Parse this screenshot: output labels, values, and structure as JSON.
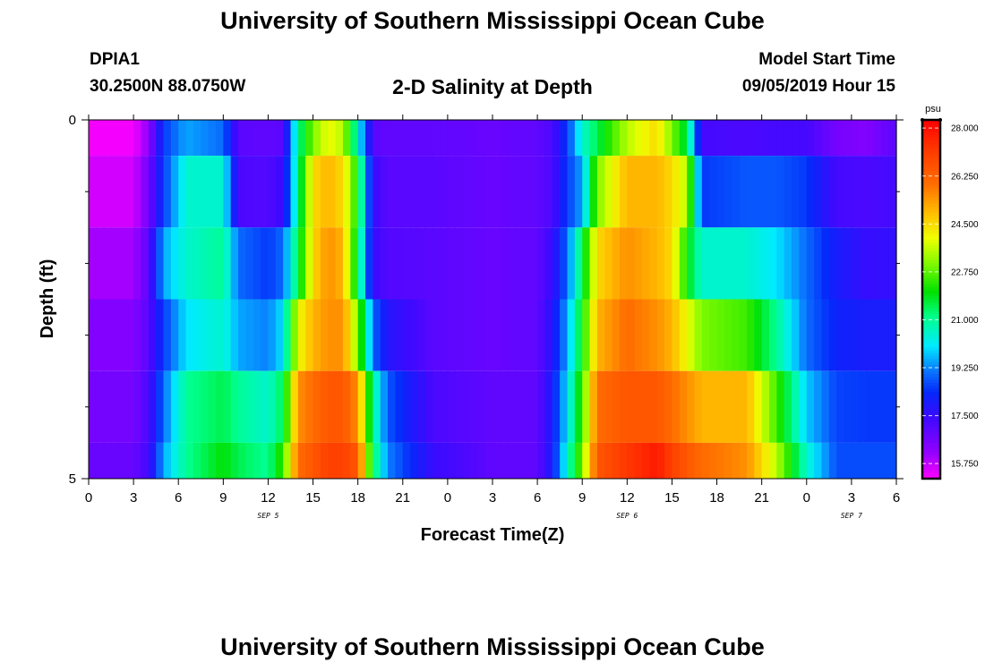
{
  "header": {
    "title": "University of Southern Mississippi Ocean Cube",
    "station_id": "DPIA1",
    "station_location": "30.2500N 88.0750W",
    "chart_title": "2-D Salinity at Depth",
    "model_start_label": "Model Start Time",
    "model_start_value": "09/05/2019 Hour 15"
  },
  "footer": {
    "title": "University of Southern Mississippi Ocean Cube"
  },
  "chart_data": {
    "type": "heatmap",
    "title": "2-D Salinity at Depth",
    "xlabel": "Forecast Time(Z)",
    "ylabel": "Depth (ft)",
    "x_tick_labels": [
      "0",
      "3",
      "6",
      "9",
      "12",
      "15",
      "18",
      "21",
      "0",
      "3",
      "6",
      "9",
      "12",
      "15",
      "18",
      "21",
      "0",
      "3",
      "6"
    ],
    "x_range_hours": [
      0,
      54
    ],
    "y_tick_labels": [
      "0",
      "5"
    ],
    "y_range": [
      0,
      5
    ],
    "day_labels": [
      {
        "label": "SEP 5",
        "hour": 12
      },
      {
        "label": "SEP 6",
        "hour": 36
      },
      {
        "label": "SEP 7",
        "hour": 51
      }
    ],
    "colorbar": {
      "unit": "psu",
      "ticks": [
        "28.000",
        "26.250",
        "24.500",
        "22.750",
        "21.000",
        "19.250",
        "17.500",
        "15.750"
      ],
      "min": 15.2,
      "max": 28.3
    },
    "depth_rows": [
      {
        "y0": 0.0,
        "y1": 0.5
      },
      {
        "y0": 0.5,
        "y1": 1.5
      },
      {
        "y0": 1.5,
        "y1": 2.5
      },
      {
        "y0": 2.5,
        "y1": 3.5
      },
      {
        "y0": 3.5,
        "y1": 4.5
      },
      {
        "y0": 4.5,
        "y1": 5.0
      }
    ],
    "profiles": [
      {
        "hour": 0,
        "values": [
          15.3,
          15.6,
          16.0,
          16.4,
          16.6,
          16.8
        ]
      },
      {
        "hour": 3,
        "values": [
          15.3,
          15.6,
          16.0,
          16.4,
          16.6,
          16.8
        ]
      },
      {
        "hour": 4,
        "values": [
          16.2,
          16.6,
          17.0,
          17.0,
          17.2,
          17.3
        ]
      },
      {
        "hour": 5,
        "values": [
          18.5,
          18.5,
          19.5,
          18.5,
          19.0,
          19.5
        ]
      },
      {
        "hour": 6.5,
        "values": [
          19.5,
          20.5,
          20.5,
          20.0,
          21.0,
          21.0
        ]
      },
      {
        "hour": 9,
        "values": [
          19.0,
          20.5,
          21.0,
          20.5,
          21.5,
          22.0
        ]
      },
      {
        "hour": 10,
        "values": [
          17.0,
          17.2,
          19.0,
          19.5,
          21.0,
          21.5
        ]
      },
      {
        "hour": 12,
        "values": [
          16.9,
          17.1,
          18.5,
          19.2,
          20.5,
          21.0
        ]
      },
      {
        "hour": 13,
        "values": [
          17.0,
          17.5,
          19.0,
          20.0,
          21.5,
          22.5
        ]
      },
      {
        "hour": 14,
        "values": [
          21.0,
          21.0,
          21.5,
          24.0,
          25.5,
          26.0
        ]
      },
      {
        "hour": 15,
        "values": [
          23.0,
          24.5,
          24.5,
          25.0,
          26.0,
          26.5
        ]
      },
      {
        "hour": 16,
        "values": [
          24.0,
          25.0,
          25.5,
          25.5,
          26.5,
          27.0
        ]
      },
      {
        "hour": 17,
        "values": [
          23.5,
          24.5,
          25.0,
          25.5,
          26.5,
          27.0
        ]
      },
      {
        "hour": 18,
        "values": [
          20.5,
          22.0,
          21.5,
          23.0,
          25.5,
          26.5
        ]
      },
      {
        "hour": 19,
        "values": [
          17.0,
          17.5,
          17.5,
          19.0,
          21.0,
          21.5
        ]
      },
      {
        "hour": 20,
        "values": [
          16.9,
          17.0,
          17.1,
          17.8,
          18.8,
          19.2
        ]
      },
      {
        "hour": 23,
        "values": [
          16.9,
          17.0,
          17.0,
          17.0,
          17.2,
          17.5
        ]
      },
      {
        "hour": 27,
        "values": [
          16.8,
          16.8,
          16.8,
          16.8,
          16.9,
          16.9
        ]
      },
      {
        "hour": 30,
        "values": [
          16.9,
          16.9,
          16.9,
          16.9,
          16.9,
          16.9
        ]
      },
      {
        "hour": 31,
        "values": [
          17.2,
          17.2,
          17.5,
          17.8,
          18.0,
          18.0
        ]
      },
      {
        "hour": 32,
        "values": [
          18.5,
          18.5,
          19.0,
          19.5,
          20.0,
          20.5
        ]
      },
      {
        "hour": 33,
        "values": [
          20.5,
          19.5,
          21.5,
          22.0,
          22.5,
          23.0
        ]
      },
      {
        "hour": 34,
        "values": [
          21.5,
          23.0,
          24.5,
          25.0,
          26.0,
          26.5
        ]
      },
      {
        "hour": 36,
        "values": [
          23.5,
          25.0,
          25.5,
          26.0,
          26.5,
          27.2
        ]
      },
      {
        "hour": 38,
        "values": [
          24.5,
          25.0,
          25.0,
          25.5,
          26.5,
          27.8
        ]
      },
      {
        "hour": 39,
        "values": [
          23.0,
          24.5,
          24.5,
          25.0,
          26.0,
          27.0
        ]
      },
      {
        "hour": 40,
        "values": [
          21.5,
          23.5,
          22.0,
          24.0,
          25.5,
          26.5
        ]
      },
      {
        "hour": 41,
        "values": [
          17.3,
          18.5,
          20.5,
          23.0,
          25.0,
          26.0
        ]
      },
      {
        "hour": 44,
        "values": [
          17.2,
          18.8,
          20.5,
          22.5,
          25.0,
          25.5
        ]
      },
      {
        "hour": 46,
        "values": [
          17.3,
          18.8,
          20.0,
          21.0,
          22.5,
          23.5
        ]
      },
      {
        "hour": 48,
        "values": [
          17.3,
          18.5,
          19.0,
          19.0,
          19.8,
          20.5
        ]
      },
      {
        "hour": 50,
        "values": [
          16.6,
          17.3,
          18.0,
          18.2,
          18.6,
          18.7
        ]
      },
      {
        "hour": 52,
        "values": [
          16.4,
          17.2,
          17.5,
          18.0,
          18.5,
          18.7
        ]
      },
      {
        "hour": 54,
        "values": [
          17.0,
          17.3,
          17.6,
          18.0,
          18.5,
          18.7
        ]
      }
    ]
  }
}
